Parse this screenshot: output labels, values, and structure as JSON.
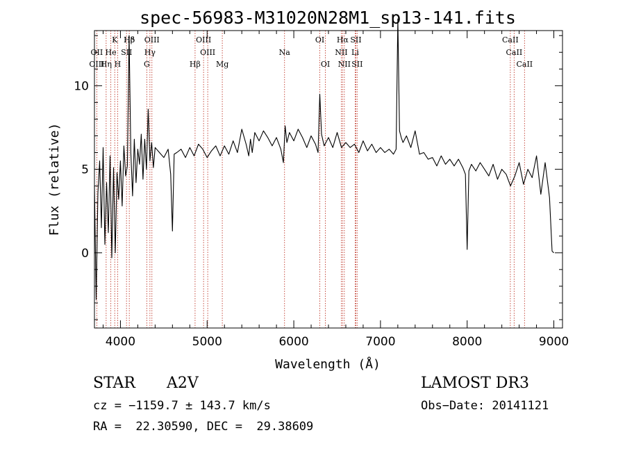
{
  "chart_data": {
    "type": "line",
    "title": "spec-56983-M31020N28M1_sp13-141.fits",
    "xlabel": "Wavelength (Å)",
    "ylabel": "Flux (relative)",
    "xlim": [
      3700,
      9100
    ],
    "ylim": [
      -4.5,
      13.3
    ],
    "x_ticks": [
      4000,
      5000,
      6000,
      7000,
      8000,
      9000
    ],
    "y_ticks": [
      0,
      5,
      10
    ],
    "x_tick_labels": [
      "4000",
      "5000",
      "6000",
      "7000",
      "8000",
      "9000"
    ],
    "y_tick_labels": [
      "0",
      "5",
      "10"
    ],
    "grid": false,
    "line_color": "#000000",
    "marker_color": "#c0392b",
    "series": [
      {
        "x": [
          3700,
          3720,
          3740,
          3760,
          3780,
          3800,
          3820,
          3840,
          3860,
          3880,
          3900,
          3920,
          3940,
          3960,
          3980,
          4000,
          4020,
          4040,
          4060,
          4080,
          4100,
          4120,
          4140,
          4160,
          4180,
          4200,
          4220,
          4240,
          4260,
          4280,
          4300,
          4320,
          4340,
          4360,
          4380,
          4400,
          4450,
          4500,
          4550,
          4580,
          4600,
          4620,
          4650,
          4700,
          4750,
          4800,
          4850,
          4900,
          4950,
          5000,
          5050,
          5100,
          5150,
          5200,
          5250,
          5300,
          5350,
          5400,
          5450,
          5480,
          5500,
          5520,
          5550,
          5600,
          5650,
          5700,
          5750,
          5800,
          5850,
          5880,
          5900,
          5920,
          5950,
          6000,
          6050,
          6100,
          6150,
          6200,
          6250,
          6280,
          6300,
          6320,
          6350,
          6400,
          6450,
          6500,
          6550,
          6600,
          6650,
          6700,
          6750,
          6800,
          6850,
          6900,
          6950,
          7000,
          7050,
          7100,
          7150,
          7180,
          7200,
          7220,
          7240,
          7260,
          7300,
          7350,
          7400,
          7450,
          7500,
          7550,
          7600,
          7650,
          7700,
          7750,
          7800,
          7850,
          7900,
          7950,
          7980,
          8000,
          8020,
          8050,
          8100,
          8150,
          8200,
          8250,
          8300,
          8350,
          8400,
          8450,
          8500,
          8550,
          8600,
          8650,
          8700,
          8750,
          8800,
          8850,
          8900,
          8950,
          8980,
          9000
        ],
        "y": [
          4.0,
          -2.8,
          3.6,
          5.5,
          1.5,
          6.3,
          0.5,
          4.2,
          1.2,
          5.8,
          -0.3,
          5.1,
          0.0,
          4.8,
          3.2,
          5.5,
          2.8,
          6.4,
          4.6,
          5.2,
          13.0,
          6.0,
          3.4,
          6.8,
          4.2,
          6.2,
          5.3,
          7.1,
          4.4,
          6.8,
          5.0,
          8.6,
          5.5,
          6.6,
          5.1,
          6.3,
          6.0,
          5.7,
          6.2,
          4.7,
          1.3,
          5.9,
          6.0,
          6.2,
          5.7,
          6.3,
          5.8,
          6.5,
          6.2,
          5.7,
          6.1,
          6.4,
          5.8,
          6.4,
          5.9,
          6.7,
          6.0,
          7.4,
          6.5,
          5.8,
          6.8,
          6.0,
          7.2,
          6.7,
          7.3,
          6.9,
          6.4,
          6.9,
          6.2,
          5.4,
          7.6,
          6.6,
          7.2,
          6.7,
          7.4,
          6.9,
          6.3,
          7.0,
          6.5,
          6.0,
          9.5,
          7.1,
          6.4,
          6.9,
          6.3,
          7.2,
          6.3,
          6.6,
          6.3,
          6.5,
          6.0,
          6.7,
          6.1,
          6.5,
          6.0,
          6.3,
          6.0,
          6.2,
          5.9,
          6.2,
          14.0,
          7.3,
          6.9,
          6.6,
          7.0,
          6.3,
          7.3,
          5.9,
          6.0,
          5.6,
          5.7,
          5.2,
          5.8,
          5.3,
          5.6,
          5.2,
          5.6,
          5.1,
          4.7,
          0.2,
          4.9,
          5.3,
          4.9,
          5.4,
          5.0,
          4.6,
          5.3,
          4.4,
          5.0,
          4.7,
          4.0,
          4.6,
          5.4,
          4.1,
          5.0,
          4.5,
          5.8,
          3.5,
          5.4,
          3.3,
          0.1,
          0.0
        ]
      }
    ],
    "line_markers": [
      {
        "label": "Hδ",
        "wavelength": 4102,
        "row": 1
      },
      {
        "label": "K",
        "wavelength": 3934,
        "row": 1
      },
      {
        "label": "Hβ",
        "wavelength": 4102,
        "row": 1
      },
      {
        "label": "OIII",
        "wavelength": 4363,
        "row": 1
      },
      {
        "label": "OIII",
        "wavelength": 4959,
        "row": 1
      },
      {
        "label": "OI",
        "wavelength": 6300,
        "row": 1
      },
      {
        "label": "Hα",
        "wavelength": 6563,
        "row": 1
      },
      {
        "label": "SII",
        "wavelength": 6716,
        "row": 1
      },
      {
        "label": "CaII",
        "wavelength": 8498,
        "row": 1
      },
      {
        "label": "OII",
        "wavelength": 3727,
        "row": 2
      },
      {
        "label": "He",
        "wavelength": 3889,
        "row": 2
      },
      {
        "label": "SII",
        "wavelength": 4070,
        "row": 2
      },
      {
        "label": "Hγ",
        "wavelength": 4340,
        "row": 2
      },
      {
        "label": "OIII",
        "wavelength": 5007,
        "row": 2
      },
      {
        "label": "Na",
        "wavelength": 5893,
        "row": 2
      },
      {
        "label": "NII",
        "wavelength": 6548,
        "row": 2
      },
      {
        "label": "Li",
        "wavelength": 6708,
        "row": 2
      },
      {
        "label": "CaII",
        "wavelength": 8542,
        "row": 2
      },
      {
        "label": "OIII",
        "wavelength": 3727,
        "row": 3
      },
      {
        "label": "Hη",
        "wavelength": 3835,
        "row": 3
      },
      {
        "label": "H",
        "wavelength": 3968,
        "row": 3
      },
      {
        "label": "G",
        "wavelength": 4304,
        "row": 3
      },
      {
        "label": "Hβ",
        "wavelength": 4861,
        "row": 3
      },
      {
        "label": "Mg",
        "wavelength": 5175,
        "row": 3
      },
      {
        "label": "OI",
        "wavelength": 6364,
        "row": 3
      },
      {
        "label": "NII",
        "wavelength": 6583,
        "row": 3
      },
      {
        "label": "SII",
        "wavelength": 6731,
        "row": 3
      },
      {
        "label": "CaII",
        "wavelength": 8662,
        "row": 3
      }
    ]
  },
  "info": {
    "class": "STAR",
    "subclass": "A2V",
    "survey": "LAMOST DR3",
    "cz": "cz = −1159.7 ± 143.7 km/s",
    "obs_date": "Obs−Date: 20141121",
    "radec": "RA =  22.30590, DEC =  29.38609"
  }
}
